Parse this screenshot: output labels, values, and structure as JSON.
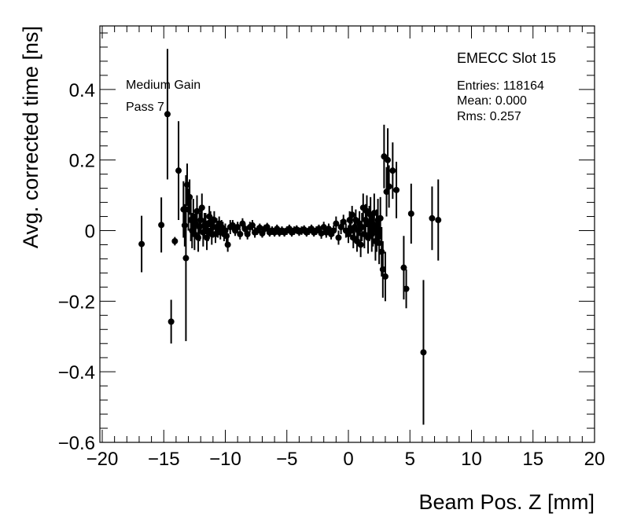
{
  "chart_data": {
    "type": "scatter",
    "title": "",
    "xlabel": "Beam Pos. Z [mm]",
    "ylabel": "Avg. corrected time [ns]",
    "xlim": [
      -20,
      20
    ],
    "ylim": [
      -0.6,
      0.58
    ],
    "xticks": [
      -20,
      -15,
      -10,
      -5,
      0,
      5,
      10,
      15,
      20
    ],
    "xtick_labels": [
      "−20",
      "−15",
      "−10",
      "−5",
      "0",
      "5",
      "10",
      "15",
      "20"
    ],
    "yticks": [
      -0.6,
      -0.4,
      -0.2,
      0,
      0.2,
      0.4
    ],
    "ytick_labels": [
      "−0.6",
      "−0.4",
      "−0.2",
      "0",
      "0.2",
      "0.4"
    ],
    "grid": false,
    "legend": "none",
    "marker_color": "#000000",
    "annotations": {
      "left_line1": "Medium Gain",
      "left_line2": "Pass 7",
      "stats_title": "EMECC Slot 15",
      "entries": "Entries: 118164",
      "mean": "Mean: 0.000",
      "rms": "Rms: 0.257"
    },
    "points": [
      {
        "x": -16.8,
        "y": -0.038,
        "err": 0.08
      },
      {
        "x": -15.2,
        "y": 0.016,
        "err": 0.078
      },
      {
        "x": -14.7,
        "y": 0.33,
        "err": 0.185
      },
      {
        "x": -14.4,
        "y": -0.258,
        "err": 0.062
      },
      {
        "x": -14.1,
        "y": -0.03,
        "err": 0.012
      },
      {
        "x": -13.8,
        "y": 0.17,
        "err": 0.14
      },
      {
        "x": -13.4,
        "y": 0.06,
        "err": 0.08
      },
      {
        "x": -13.3,
        "y": 0.015,
        "err": 0.06
      },
      {
        "x": -13.2,
        "y": -0.078,
        "err": 0.235
      },
      {
        "x": -13.1,
        "y": 0.13,
        "err": 0.06
      },
      {
        "x": -13.0,
        "y": 0.06,
        "err": 0.06
      },
      {
        "x": -12.9,
        "y": 0.095,
        "err": 0.05
      },
      {
        "x": -12.8,
        "y": 0.03,
        "err": 0.06
      },
      {
        "x": -12.7,
        "y": 0.0,
        "err": 0.05
      },
      {
        "x": -12.6,
        "y": 0.04,
        "err": 0.05
      },
      {
        "x": -12.5,
        "y": -0.01,
        "err": 0.045
      },
      {
        "x": -12.4,
        "y": 0.02,
        "err": 0.04
      },
      {
        "x": -12.3,
        "y": 0.055,
        "err": 0.045
      },
      {
        "x": -12.2,
        "y": -0.02,
        "err": 0.04
      },
      {
        "x": -12.1,
        "y": 0.01,
        "err": 0.04
      },
      {
        "x": -12.0,
        "y": 0.03,
        "err": 0.035
      },
      {
        "x": -11.9,
        "y": 0.065,
        "err": 0.04
      },
      {
        "x": -11.8,
        "y": -0.005,
        "err": 0.04
      },
      {
        "x": -11.7,
        "y": 0.015,
        "err": 0.035
      },
      {
        "x": -11.6,
        "y": 0.02,
        "err": 0.03
      },
      {
        "x": -11.5,
        "y": -0.02,
        "err": 0.035
      },
      {
        "x": -11.4,
        "y": 0.0,
        "err": 0.03
      },
      {
        "x": -11.3,
        "y": 0.04,
        "err": 0.03
      },
      {
        "x": -11.2,
        "y": 0.025,
        "err": 0.03
      },
      {
        "x": -11.1,
        "y": -0.01,
        "err": 0.03
      },
      {
        "x": -11.0,
        "y": 0.01,
        "err": 0.03
      },
      {
        "x": -10.9,
        "y": 0.03,
        "err": 0.025
      },
      {
        "x": -10.8,
        "y": -0.01,
        "err": 0.025
      },
      {
        "x": -10.7,
        "y": 0.01,
        "err": 0.025
      },
      {
        "x": -10.6,
        "y": 0.0,
        "err": 0.02
      },
      {
        "x": -10.5,
        "y": 0.02,
        "err": 0.02
      },
      {
        "x": -10.4,
        "y": -0.005,
        "err": 0.02
      },
      {
        "x": -10.3,
        "y": 0.01,
        "err": 0.02
      },
      {
        "x": -10.2,
        "y": 0.005,
        "err": 0.02
      },
      {
        "x": -10.1,
        "y": -0.01,
        "err": 0.02
      },
      {
        "x": -10.0,
        "y": 0.0,
        "err": 0.02
      },
      {
        "x": -9.9,
        "y": -0.015,
        "err": 0.02
      },
      {
        "x": -9.8,
        "y": -0.04,
        "err": 0.02
      },
      {
        "x": -9.6,
        "y": 0.01,
        "err": 0.02
      },
      {
        "x": -9.4,
        "y": 0.015,
        "err": 0.015
      },
      {
        "x": -9.2,
        "y": 0.0,
        "err": 0.015
      },
      {
        "x": -9.0,
        "y": 0.01,
        "err": 0.015
      },
      {
        "x": -8.8,
        "y": -0.01,
        "err": 0.015
      },
      {
        "x": -8.6,
        "y": 0.02,
        "err": 0.015
      },
      {
        "x": -8.4,
        "y": 0.005,
        "err": 0.015
      },
      {
        "x": -8.2,
        "y": -0.01,
        "err": 0.015
      },
      {
        "x": -8.0,
        "y": 0.01,
        "err": 0.015
      },
      {
        "x": -7.8,
        "y": 0.015,
        "err": 0.015
      },
      {
        "x": -7.6,
        "y": -0.005,
        "err": 0.015
      },
      {
        "x": -7.4,
        "y": 0.0,
        "err": 0.012
      },
      {
        "x": -7.2,
        "y": 0.008,
        "err": 0.012
      },
      {
        "x": -7.0,
        "y": -0.008,
        "err": 0.012
      },
      {
        "x": -6.8,
        "y": 0.005,
        "err": 0.012
      },
      {
        "x": -6.6,
        "y": 0.01,
        "err": 0.012
      },
      {
        "x": -6.4,
        "y": -0.005,
        "err": 0.012
      },
      {
        "x": -6.2,
        "y": 0.0,
        "err": 0.012
      },
      {
        "x": -6.0,
        "y": -0.005,
        "err": 0.012
      },
      {
        "x": -5.8,
        "y": 0.005,
        "err": 0.012
      },
      {
        "x": -5.6,
        "y": -0.005,
        "err": 0.012
      },
      {
        "x": -5.4,
        "y": 0.0,
        "err": 0.012
      },
      {
        "x": -5.2,
        "y": -0.005,
        "err": 0.012
      },
      {
        "x": -5.0,
        "y": 0.0,
        "err": 0.012
      },
      {
        "x": -4.8,
        "y": 0.005,
        "err": 0.012
      },
      {
        "x": -4.6,
        "y": -0.005,
        "err": 0.012
      },
      {
        "x": -4.4,
        "y": 0.0,
        "err": 0.012
      },
      {
        "x": -4.2,
        "y": 0.003,
        "err": 0.012
      },
      {
        "x": -4.0,
        "y": -0.003,
        "err": 0.012
      },
      {
        "x": -3.8,
        "y": 0.0,
        "err": 0.012
      },
      {
        "x": -3.6,
        "y": 0.003,
        "err": 0.012
      },
      {
        "x": -3.4,
        "y": -0.005,
        "err": 0.012
      },
      {
        "x": -3.2,
        "y": 0.0,
        "err": 0.012
      },
      {
        "x": -3.0,
        "y": 0.005,
        "err": 0.012
      },
      {
        "x": -2.8,
        "y": -0.005,
        "err": 0.012
      },
      {
        "x": -2.6,
        "y": 0.0,
        "err": 0.012
      },
      {
        "x": -2.4,
        "y": 0.005,
        "err": 0.012
      },
      {
        "x": -2.2,
        "y": -0.008,
        "err": 0.015
      },
      {
        "x": -2.0,
        "y": 0.01,
        "err": 0.015
      },
      {
        "x": -1.8,
        "y": -0.005,
        "err": 0.015
      },
      {
        "x": -1.6,
        "y": 0.005,
        "err": 0.015
      },
      {
        "x": -1.4,
        "y": -0.01,
        "err": 0.015
      },
      {
        "x": -1.2,
        "y": 0.0,
        "err": 0.015
      },
      {
        "x": -1.0,
        "y": 0.02,
        "err": 0.02
      },
      {
        "x": -0.8,
        "y": -0.02,
        "err": 0.02
      },
      {
        "x": -0.6,
        "y": 0.01,
        "err": 0.02
      },
      {
        "x": -0.4,
        "y": 0.025,
        "err": 0.02
      },
      {
        "x": -0.2,
        "y": 0.0,
        "err": 0.02
      },
      {
        "x": 0.0,
        "y": -0.01,
        "err": 0.025
      },
      {
        "x": 0.1,
        "y": 0.03,
        "err": 0.025
      },
      {
        "x": 0.2,
        "y": 0.0,
        "err": 0.025
      },
      {
        "x": 0.3,
        "y": 0.045,
        "err": 0.025
      },
      {
        "x": 0.4,
        "y": -0.02,
        "err": 0.03
      },
      {
        "x": 0.5,
        "y": 0.01,
        "err": 0.03
      },
      {
        "x": 0.6,
        "y": 0.03,
        "err": 0.03
      },
      {
        "x": 0.7,
        "y": -0.03,
        "err": 0.03
      },
      {
        "x": 0.8,
        "y": 0.0,
        "err": 0.035
      },
      {
        "x": 0.9,
        "y": 0.02,
        "err": 0.035
      },
      {
        "x": 1.0,
        "y": -0.04,
        "err": 0.035
      },
      {
        "x": 1.1,
        "y": 0.01,
        "err": 0.04
      },
      {
        "x": 1.2,
        "y": 0.065,
        "err": 0.04
      },
      {
        "x": 1.3,
        "y": -0.01,
        "err": 0.04
      },
      {
        "x": 1.4,
        "y": 0.03,
        "err": 0.045
      },
      {
        "x": 1.5,
        "y": 0.055,
        "err": 0.045
      },
      {
        "x": 1.6,
        "y": -0.02,
        "err": 0.045
      },
      {
        "x": 1.7,
        "y": 0.02,
        "err": 0.05
      },
      {
        "x": 1.8,
        "y": 0.045,
        "err": 0.05
      },
      {
        "x": 1.9,
        "y": -0.01,
        "err": 0.05
      },
      {
        "x": 2.0,
        "y": 0.005,
        "err": 0.05
      },
      {
        "x": 2.1,
        "y": 0.05,
        "err": 0.055
      },
      {
        "x": 2.2,
        "y": -0.03,
        "err": 0.055
      },
      {
        "x": 2.3,
        "y": 0.0,
        "err": 0.06
      },
      {
        "x": 2.4,
        "y": 0.03,
        "err": 0.06
      },
      {
        "x": 2.5,
        "y": -0.035,
        "err": 0.06
      },
      {
        "x": 2.6,
        "y": 0.035,
        "err": 0.06
      },
      {
        "x": 2.7,
        "y": -0.06,
        "err": 0.07
      },
      {
        "x": 2.8,
        "y": -0.11,
        "err": 0.08
      },
      {
        "x": 2.9,
        "y": 0.21,
        "err": 0.09
      },
      {
        "x": 3.0,
        "y": -0.13,
        "err": 0.07
      },
      {
        "x": 3.1,
        "y": 0.11,
        "err": 0.07
      },
      {
        "x": 3.2,
        "y": 0.2,
        "err": 0.09
      },
      {
        "x": 3.3,
        "y": 0.125,
        "err": 0.06
      },
      {
        "x": 3.6,
        "y": 0.17,
        "err": 0.08
      },
      {
        "x": 3.9,
        "y": 0.115,
        "err": 0.08
      },
      {
        "x": 4.5,
        "y": -0.105,
        "err": 0.09
      },
      {
        "x": 4.7,
        "y": -0.165,
        "err": 0.055
      },
      {
        "x": 5.1,
        "y": 0.048,
        "err": 0.085
      },
      {
        "x": 6.1,
        "y": -0.345,
        "err": 0.205
      },
      {
        "x": 6.8,
        "y": 0.035,
        "err": 0.09
      },
      {
        "x": 7.3,
        "y": 0.03,
        "err": 0.115
      }
    ]
  }
}
